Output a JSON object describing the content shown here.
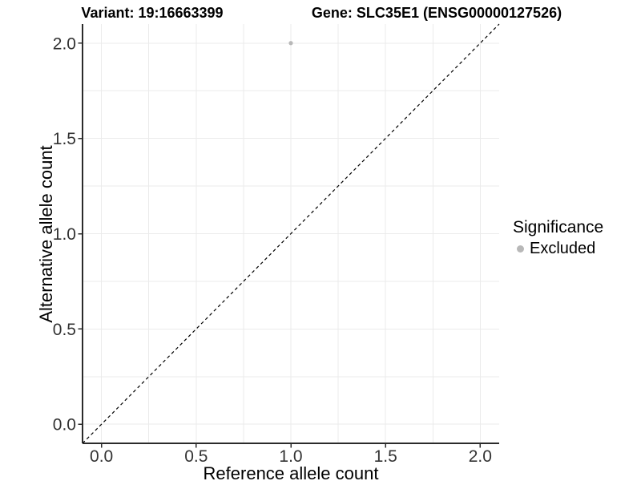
{
  "chart_data": {
    "type": "scatter",
    "titles": {
      "left": "Variant: 19:16663399",
      "right": "Gene: SLC35E1 (ENSG00000127526)"
    },
    "xlabel": "Reference allele count",
    "ylabel": "Alternative allele count",
    "xlim": [
      -0.1,
      2.1
    ],
    "ylim": [
      -0.1,
      2.1
    ],
    "x_ticks": [
      0.0,
      0.5,
      1.0,
      1.5,
      2.0
    ],
    "y_ticks": [
      0.0,
      0.5,
      1.0,
      1.5,
      2.0
    ],
    "x_tick_labels": [
      "0.0",
      "0.5",
      "1.0",
      "1.5",
      "2.0"
    ],
    "y_tick_labels": [
      "0.0",
      "0.5",
      "1.0",
      "1.5",
      "2.0"
    ],
    "minor_ticks": [
      0.25,
      0.75,
      1.25,
      1.75
    ],
    "grid": true,
    "series": [
      {
        "name": "Excluded",
        "color": "#b8b8b8",
        "points": [
          {
            "x": 1.0,
            "y": 2.0
          }
        ]
      }
    ],
    "reference_line": {
      "style": "dashed",
      "from": [
        -0.1,
        -0.1
      ],
      "to": [
        2.1,
        2.1
      ],
      "color": "#000000",
      "meaning": "identity line y = x"
    },
    "legend": {
      "title": "Significance",
      "position": "right",
      "entries": [
        {
          "label": "Excluded",
          "color": "#b8b8b8",
          "marker": "circle"
        }
      ]
    },
    "colors": {
      "grid": "#ebebeb",
      "axis": "#2b2b2b",
      "tick_label": "#333333",
      "background": "#ffffff"
    }
  }
}
